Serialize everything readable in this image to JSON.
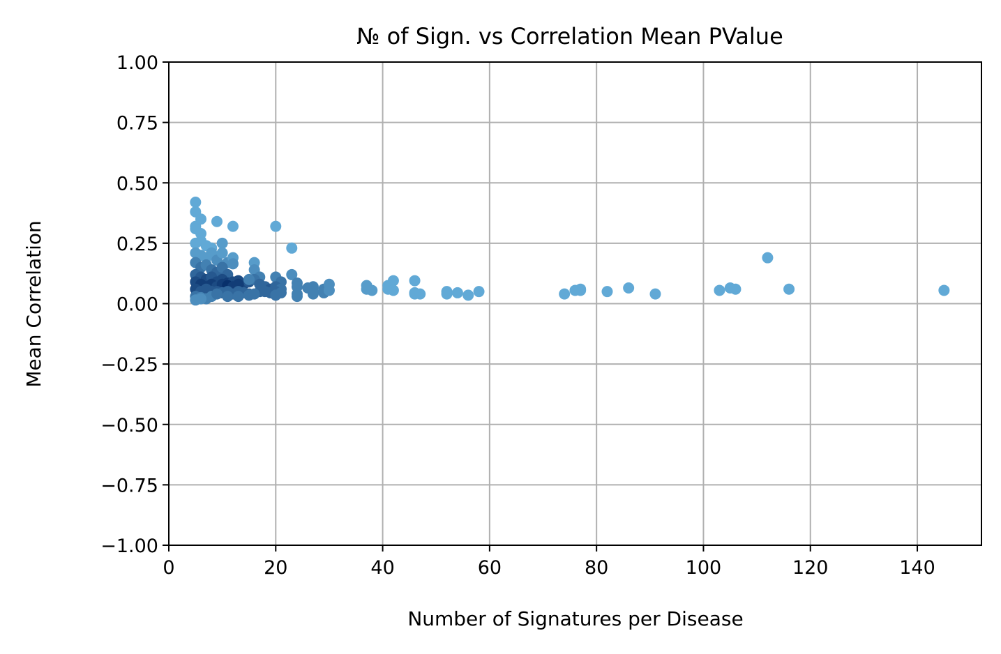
{
  "chart_data": {
    "type": "scatter",
    "title": "№ of Sign. vs Correlation Mean PValue",
    "xlabel": "Number of Signatures per Disease",
    "ylabel": "Mean Correlation",
    "xlim": [
      0,
      152
    ],
    "ylim": [
      -1.0,
      1.0
    ],
    "xticks": [
      0,
      20,
      40,
      60,
      80,
      100,
      120,
      140
    ],
    "xtick_labels": [
      "0",
      "20",
      "40",
      "60",
      "80",
      "100",
      "120",
      "140"
    ],
    "yticks": [
      1.0,
      0.75,
      0.5,
      0.25,
      0.0,
      -0.25,
      -0.5,
      -0.75,
      -1.0
    ],
    "ytick_labels": [
      "1.00",
      "0.75",
      "0.50",
      "0.25",
      "0.00",
      "−0.25",
      "−0.50",
      "−0.75",
      "−1.00"
    ],
    "grid": true,
    "colormap": "blues",
    "points": [
      [
        5,
        0.42,
        0.55
      ],
      [
        5,
        0.38,
        0.55
      ],
      [
        5,
        0.32,
        0.55
      ],
      [
        5,
        0.31,
        0.55
      ],
      [
        6,
        0.35,
        0.55
      ],
      [
        6,
        0.29,
        0.55
      ],
      [
        5,
        0.25,
        0.55
      ],
      [
        6,
        0.26,
        0.55
      ],
      [
        7,
        0.24,
        0.55
      ],
      [
        8,
        0.23,
        0.55
      ],
      [
        9,
        0.34,
        0.55
      ],
      [
        12,
        0.32,
        0.55
      ],
      [
        10,
        0.25,
        0.6
      ],
      [
        5,
        0.21,
        0.6
      ],
      [
        6,
        0.2,
        0.6
      ],
      [
        7,
        0.19,
        0.6
      ],
      [
        8,
        0.21,
        0.6
      ],
      [
        9,
        0.18,
        0.65
      ],
      [
        10,
        0.21,
        0.6
      ],
      [
        11,
        0.17,
        0.65
      ],
      [
        12,
        0.19,
        0.6
      ],
      [
        12,
        0.165,
        0.65
      ],
      [
        5,
        0.17,
        0.7
      ],
      [
        6,
        0.15,
        0.75
      ],
      [
        7,
        0.16,
        0.7
      ],
      [
        8,
        0.14,
        0.75
      ],
      [
        9,
        0.13,
        0.8
      ],
      [
        10,
        0.15,
        0.75
      ],
      [
        11,
        0.12,
        0.8
      ],
      [
        5,
        0.12,
        0.8
      ],
      [
        6,
        0.11,
        0.85
      ],
      [
        7,
        0.1,
        0.9
      ],
      [
        8,
        0.11,
        0.85
      ],
      [
        9,
        0.09,
        0.9
      ],
      [
        10,
        0.1,
        0.9
      ],
      [
        11,
        0.085,
        0.95
      ],
      [
        12,
        0.09,
        0.9
      ],
      [
        13,
        0.095,
        0.9
      ],
      [
        14,
        0.08,
        0.9
      ],
      [
        15,
        0.09,
        0.85
      ],
      [
        5,
        0.09,
        0.9
      ],
      [
        6,
        0.08,
        0.95
      ],
      [
        7,
        0.07,
        0.95
      ],
      [
        8,
        0.08,
        0.95
      ],
      [
        9,
        0.07,
        0.9
      ],
      [
        10,
        0.08,
        0.95
      ],
      [
        11,
        0.075,
        1.0
      ],
      [
        12,
        0.07,
        0.95
      ],
      [
        13,
        0.08,
        0.95
      ],
      [
        5,
        0.06,
        0.9
      ],
      [
        6,
        0.05,
        0.85
      ],
      [
        7,
        0.06,
        0.85
      ],
      [
        8,
        0.05,
        0.85
      ],
      [
        9,
        0.05,
        0.85
      ],
      [
        10,
        0.045,
        0.8
      ],
      [
        11,
        0.05,
        0.8
      ],
      [
        12,
        0.04,
        0.8
      ],
      [
        13,
        0.05,
        0.8
      ],
      [
        14,
        0.045,
        0.8
      ],
      [
        15,
        0.04,
        0.8
      ],
      [
        5,
        0.03,
        0.75
      ],
      [
        6,
        0.025,
        0.7
      ],
      [
        7,
        0.02,
        0.7
      ],
      [
        8,
        0.03,
        0.7
      ],
      [
        5,
        0.015,
        0.65
      ],
      [
        6,
        0.02,
        0.65
      ],
      [
        9,
        0.04,
        0.75
      ],
      [
        11,
        0.03,
        0.75
      ],
      [
        13,
        0.03,
        0.75
      ],
      [
        15,
        0.035,
        0.75
      ],
      [
        16,
        0.17,
        0.6
      ],
      [
        16,
        0.14,
        0.65
      ],
      [
        17,
        0.11,
        0.7
      ],
      [
        16,
        0.1,
        0.75
      ],
      [
        15,
        0.1,
        0.7
      ],
      [
        17,
        0.08,
        0.8
      ],
      [
        18,
        0.07,
        0.8
      ],
      [
        19,
        0.06,
        0.85
      ],
      [
        17,
        0.05,
        0.8
      ],
      [
        16,
        0.04,
        0.75
      ],
      [
        18,
        0.05,
        0.8
      ],
      [
        19,
        0.045,
        0.8
      ],
      [
        20,
        0.32,
        0.55
      ],
      [
        20,
        0.11,
        0.7
      ],
      [
        21,
        0.09,
        0.75
      ],
      [
        20,
        0.07,
        0.8
      ],
      [
        21,
        0.06,
        0.75
      ],
      [
        20,
        0.05,
        0.8
      ],
      [
        21,
        0.045,
        0.75
      ],
      [
        20,
        0.035,
        0.75
      ],
      [
        23,
        0.23,
        0.55
      ],
      [
        23,
        0.12,
        0.65
      ],
      [
        24,
        0.085,
        0.7
      ],
      [
        24,
        0.07,
        0.7
      ],
      [
        24,
        0.04,
        0.7
      ],
      [
        24,
        0.03,
        0.7
      ],
      [
        26,
        0.065,
        0.7
      ],
      [
        27,
        0.07,
        0.7
      ],
      [
        27,
        0.05,
        0.7
      ],
      [
        27,
        0.04,
        0.7
      ],
      [
        29,
        0.06,
        0.7
      ],
      [
        29,
        0.045,
        0.7
      ],
      [
        30,
        0.08,
        0.65
      ],
      [
        30,
        0.055,
        0.65
      ],
      [
        37,
        0.075,
        0.6
      ],
      [
        37,
        0.06,
        0.6
      ],
      [
        38,
        0.055,
        0.6
      ],
      [
        41,
        0.075,
        0.55
      ],
      [
        41,
        0.06,
        0.55
      ],
      [
        42,
        0.095,
        0.55
      ],
      [
        42,
        0.055,
        0.55
      ],
      [
        46,
        0.095,
        0.55
      ],
      [
        46,
        0.045,
        0.55
      ],
      [
        46,
        0.04,
        0.55
      ],
      [
        47,
        0.04,
        0.55
      ],
      [
        52,
        0.05,
        0.55
      ],
      [
        52,
        0.04,
        0.55
      ],
      [
        54,
        0.045,
        0.55
      ],
      [
        56,
        0.035,
        0.55
      ],
      [
        58,
        0.05,
        0.55
      ],
      [
        74,
        0.04,
        0.55
      ],
      [
        76,
        0.055,
        0.55
      ],
      [
        77,
        0.06,
        0.55
      ],
      [
        77,
        0.055,
        0.55
      ],
      [
        82,
        0.05,
        0.55
      ],
      [
        86,
        0.065,
        0.55
      ],
      [
        91,
        0.04,
        0.55
      ],
      [
        103,
        0.055,
        0.55
      ],
      [
        105,
        0.065,
        0.55
      ],
      [
        106,
        0.06,
        0.55
      ],
      [
        112,
        0.19,
        0.55
      ],
      [
        116,
        0.06,
        0.55
      ],
      [
        145,
        0.055,
        0.55
      ]
    ]
  }
}
